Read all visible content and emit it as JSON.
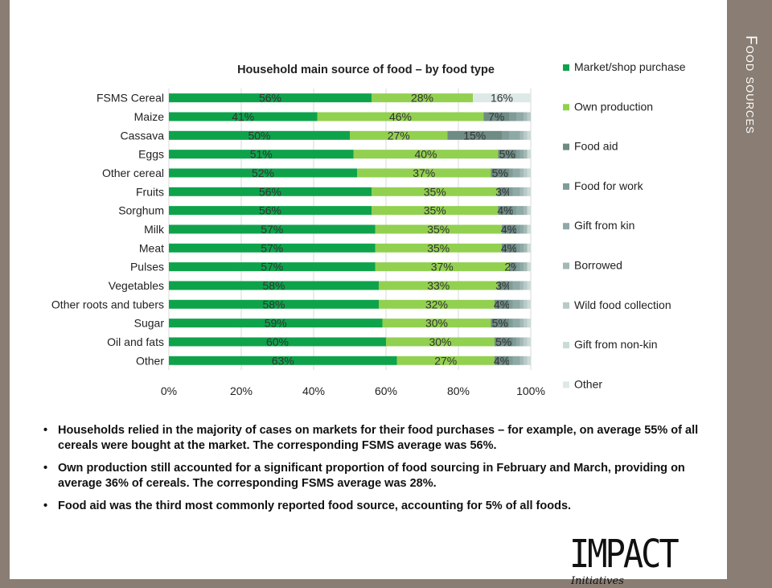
{
  "side_title": "Food sources",
  "chart_data": {
    "type": "bar",
    "orientation": "horizontal",
    "stacked": true,
    "title": "Household main source of food – by food type",
    "categories": [
      "FSMS Cereal",
      "Maize",
      "Cassava",
      "Eggs",
      "Other cereal",
      "Fruits",
      "Sorghum",
      "Milk",
      "Meat",
      "Pulses",
      "Vegetables",
      "Other roots and tubers",
      "Sugar",
      "Oil and fats",
      "Other"
    ],
    "xlim": [
      0,
      100
    ],
    "x_ticks": [
      "0%",
      "20%",
      "40%",
      "60%",
      "80%",
      "100%"
    ],
    "grid": true,
    "legend_position": "right",
    "series": [
      {
        "name": "Market/shop purchase",
        "color": "#0ea34b",
        "values": [
          56,
          41,
          50,
          51,
          52,
          56,
          56,
          57,
          57,
          57,
          58,
          58,
          59,
          60,
          63
        ],
        "labels": [
          "56%",
          "41%",
          "50%",
          "51%",
          "52%",
          "56%",
          "56%",
          "57%",
          "57%",
          "57%",
          "58%",
          "58%",
          "59%",
          "60%",
          "63%"
        ]
      },
      {
        "name": "Own production",
        "color": "#92d050",
        "values": [
          28,
          46,
          27,
          40,
          37,
          35,
          35,
          35,
          35,
          37,
          33,
          32,
          30,
          30,
          27
        ],
        "labels": [
          "28%",
          "46%",
          "27%",
          "40%",
          "37%",
          "35%",
          "35%",
          "35%",
          "35%",
          "37%",
          "33%",
          "32%",
          "30%",
          "30%",
          "27%"
        ]
      },
      {
        "name": "Food aid",
        "color": "#6e8b84",
        "values": [
          0,
          7,
          15,
          5,
          5,
          3,
          4,
          4,
          4,
          2,
          3,
          4,
          5,
          5,
          4
        ],
        "labels": [
          "",
          "7%",
          "15%",
          "5%",
          "5%",
          "3%",
          "4%",
          "4%",
          "4%",
          "2%",
          "3%",
          "4%",
          "5%",
          "5%",
          "4%"
        ]
      },
      {
        "name": "Food for work",
        "color": "#7f9c98",
        "values": [
          0,
          2,
          2,
          1,
          1,
          1,
          1,
          1,
          1,
          1,
          1,
          1,
          1,
          1,
          1
        ],
        "labels": []
      },
      {
        "name": "Gift from kin",
        "color": "#8fa9a6",
        "values": [
          0,
          2,
          3,
          1,
          2,
          2,
          2,
          1,
          1,
          1,
          2,
          2,
          2,
          1,
          2
        ],
        "labels": []
      },
      {
        "name": "Borrowed",
        "color": "#a4b8b5",
        "values": [
          0,
          1,
          1,
          1,
          1,
          1,
          1,
          1,
          1,
          1,
          1,
          1,
          1,
          1,
          1
        ],
        "labels": []
      },
      {
        "name": "Wild food collection",
        "color": "#b8cac8",
        "values": [
          0,
          1,
          1,
          0,
          1,
          1,
          0,
          0,
          0,
          0,
          1,
          1,
          1,
          1,
          1
        ],
        "labels": []
      },
      {
        "name": "Gift from non-kin",
        "color": "#cadbd8",
        "values": [
          0,
          0,
          1,
          1,
          1,
          1,
          1,
          1,
          1,
          1,
          1,
          1,
          1,
          1,
          1
        ],
        "labels": []
      },
      {
        "name": "Other",
        "color": "#dde9e7",
        "values": [
          16,
          0,
          0,
          0,
          0,
          0,
          0,
          0,
          0,
          0,
          0,
          0,
          0,
          0,
          0
        ],
        "labels": [
          "16%",
          "",
          "",
          "",
          "",
          "",
          "",
          "",
          "",
          "",
          "",
          "",
          "",
          "",
          ""
        ]
      }
    ]
  },
  "bullets": [
    "Households relied in the majority of cases on markets for their food purchases – for example, on average 55% of all cereals were bought at the market. The corresponding FSMS average was 56%.",
    "Own production still accounted for a significant proportion of food sourcing in February and March, providing on average 36% of cereals. The corresponding FSMS average was 28%.",
    "Food aid was the third most commonly reported food source, accounting for 5% of all foods."
  ],
  "logo": {
    "main": "IMPACT",
    "sub": "Initiatives"
  }
}
